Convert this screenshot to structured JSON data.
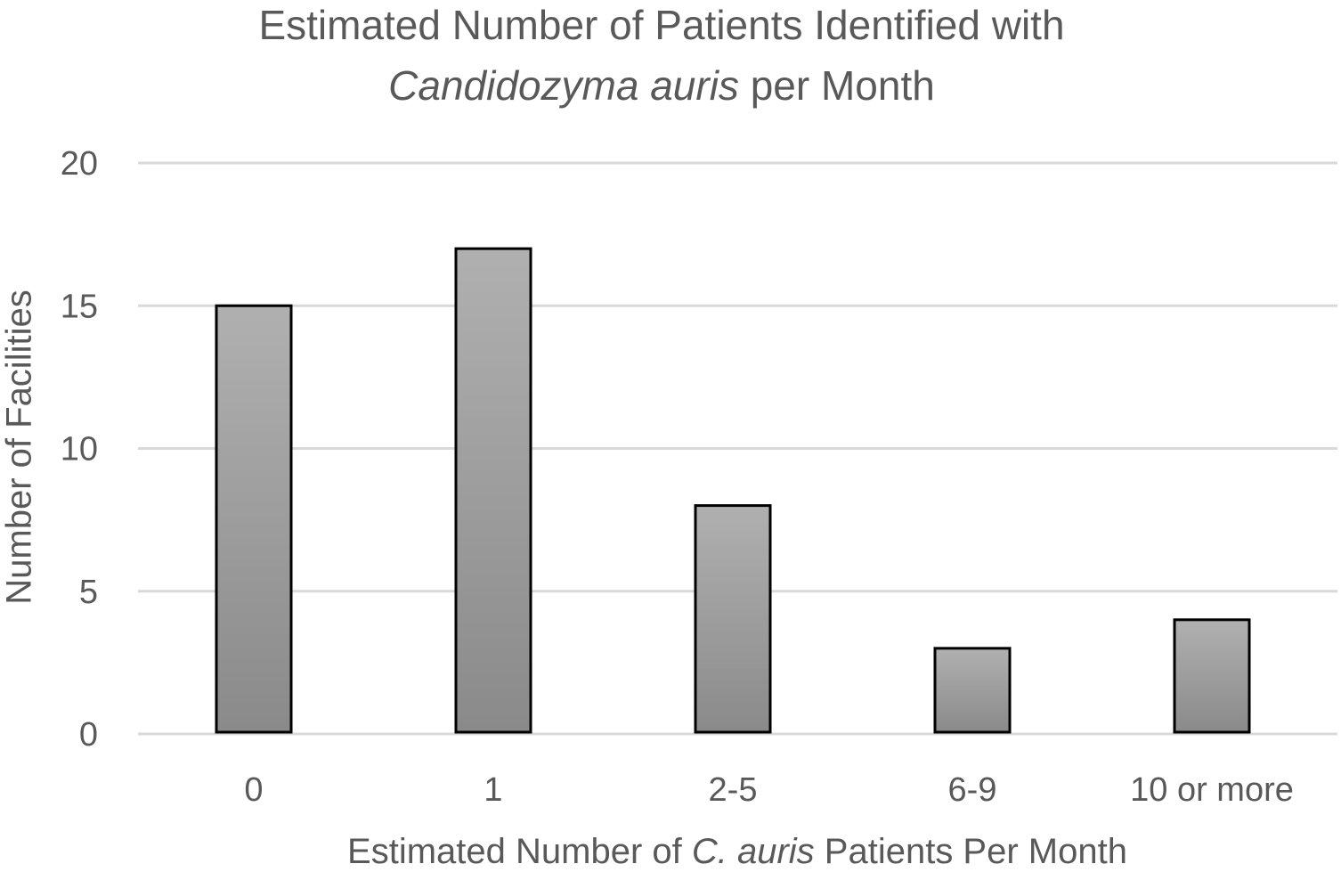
{
  "title": {
    "line1": "Estimated Number of Patients Identified with",
    "line2_italic": "Candidozyma auris",
    "line2_rest": " per Month"
  },
  "axes": {
    "ylabel": "Number of Facilities",
    "xlabel_pre": "Estimated Number of ",
    "xlabel_italic": "C. auris",
    "xlabel_post": " Patients Per Month"
  },
  "chart_data": {
    "type": "bar",
    "title": "Estimated Number of Patients Identified with Candidozyma auris per Month",
    "xlabel": "Estimated Number of C. auris Patients Per Month",
    "ylabel": "Number of Facilities",
    "categories": [
      "0",
      "1",
      "2-5",
      "6-9",
      "10 or more"
    ],
    "values": [
      15,
      17,
      8,
      3,
      4
    ],
    "ylim": [
      0,
      20
    ],
    "yticks": [
      "0",
      "5",
      "10",
      "15",
      "20"
    ],
    "grid": true,
    "legend": "none",
    "colors": {
      "bar_top": "#b0b0b0",
      "bar_bottom": "#8a8a8a",
      "bar_edge": "#000000",
      "grid": "#d9d9d9",
      "text": "#595959"
    }
  }
}
